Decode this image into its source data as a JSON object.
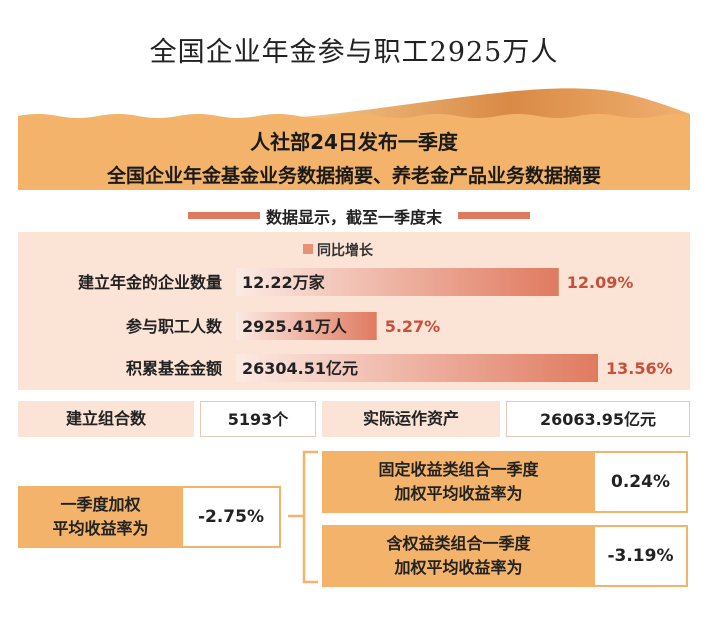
{
  "title": "全国企业年金参与职工2925万人",
  "banner": {
    "line1": "人社部24日发布一季度",
    "line2": "全国企业年金基金业务数据摘要、养老金产品业务数据摘要"
  },
  "section_heading": "数据显示，截至一季度末",
  "legend_label": "同比增长",
  "stats": [
    {
      "label": "建立组合数",
      "value": "5193个"
    },
    {
      "label": "实际运作资产",
      "value": "26063.95亿元"
    }
  ],
  "yield": {
    "overall": {
      "label_line1": "一季度加权",
      "label_line2": "平均收益率为",
      "value": "-2.75%"
    },
    "fixed": {
      "label_line1": "固定收益类组合一季度",
      "label_line2": "加权平均收益率为",
      "value": "0.24%"
    },
    "equity": {
      "label_line1": "含权益类组合一季度",
      "label_line2": "加权平均收益率为",
      "value": "-3.19%"
    }
  },
  "colors": {
    "banner": "#f3b36a",
    "bar": "#e07a5f",
    "panel": "#fbe3d6",
    "growth_text": "#c8503a"
  },
  "chart_data": {
    "type": "bar",
    "orientation": "horizontal",
    "categories": [
      "建立年金的企业数量",
      "参与职工人数",
      "积累基金金额"
    ],
    "values": [
      12.09,
      5.27,
      13.56
    ],
    "value_unit": "%",
    "value_labels": [
      "12.09%",
      "5.27%",
      "13.56%"
    ],
    "bar_labels": [
      "12.22万家",
      "2925.41万人",
      "26304.51亿元"
    ],
    "xlim": [
      0,
      13.56
    ],
    "legend": "top",
    "grid": false
  }
}
